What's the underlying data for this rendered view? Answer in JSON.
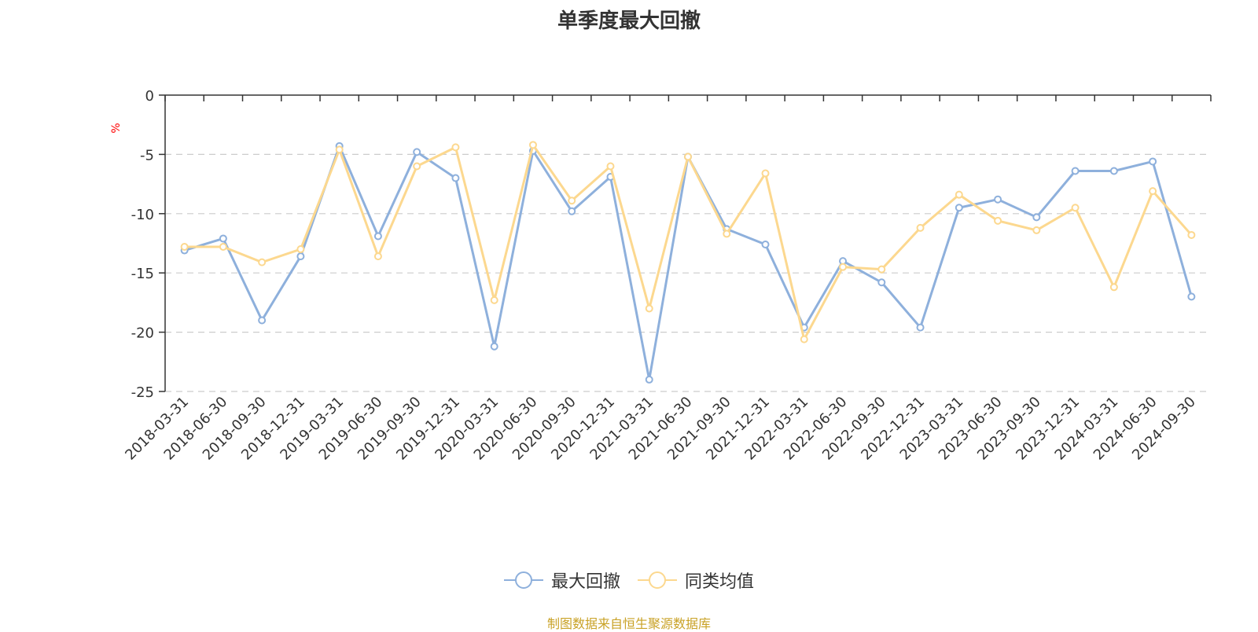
{
  "chart_data": {
    "type": "line",
    "title": "单季度最大回撤",
    "ylabel": "%",
    "ylim": [
      -25,
      0
    ],
    "yticks": [
      0,
      -5,
      -10,
      -15,
      -20,
      -25
    ],
    "grid": true,
    "legend_position": "bottom",
    "categories": [
      "2018-03-31",
      "2018-06-30",
      "2018-09-30",
      "2018-12-31",
      "2019-03-31",
      "2019-06-30",
      "2019-09-30",
      "2019-12-31",
      "2020-03-31",
      "2020-06-30",
      "2020-09-30",
      "2020-12-31",
      "2021-03-31",
      "2021-06-30",
      "2021-09-30",
      "2021-12-31",
      "2022-03-31",
      "2022-06-30",
      "2022-09-30",
      "2022-12-31",
      "2023-03-31",
      "2023-06-30",
      "2023-09-30",
      "2023-12-31",
      "2024-03-31",
      "2024-06-30",
      "2024-09-30"
    ],
    "series": [
      {
        "name": "最大回撤",
        "color": "#8eb0dc",
        "values": [
          -13.1,
          -12.1,
          -19.0,
          -13.6,
          -4.3,
          -11.9,
          -4.8,
          -7.0,
          -21.2,
          -4.7,
          -9.8,
          -6.9,
          -24.0,
          -5.2,
          -11.3,
          -12.6,
          -19.6,
          -14.0,
          -15.8,
          -19.6,
          -9.5,
          -8.8,
          -10.3,
          -6.4,
          -6.4,
          -5.6,
          -17.0
        ]
      },
      {
        "name": "同类均值",
        "color": "#fcd88f",
        "values": [
          -12.8,
          -12.8,
          -14.1,
          -13.0,
          -4.6,
          -13.6,
          -6.0,
          -4.4,
          -17.3,
          -4.2,
          -8.9,
          -6.0,
          -18.0,
          -5.2,
          -11.7,
          -6.6,
          -20.6,
          -14.5,
          -14.7,
          -11.2,
          -8.4,
          -10.6,
          -11.4,
          -9.5,
          -16.2,
          -8.1,
          -11.8
        ]
      }
    ]
  },
  "legend": {
    "items": [
      {
        "label": "最大回撤",
        "color": "#8eb0dc"
      },
      {
        "label": "同类均值",
        "color": "#fcd88f"
      }
    ]
  },
  "footer": {
    "source": "制图数据来自恒生聚源数据库"
  }
}
